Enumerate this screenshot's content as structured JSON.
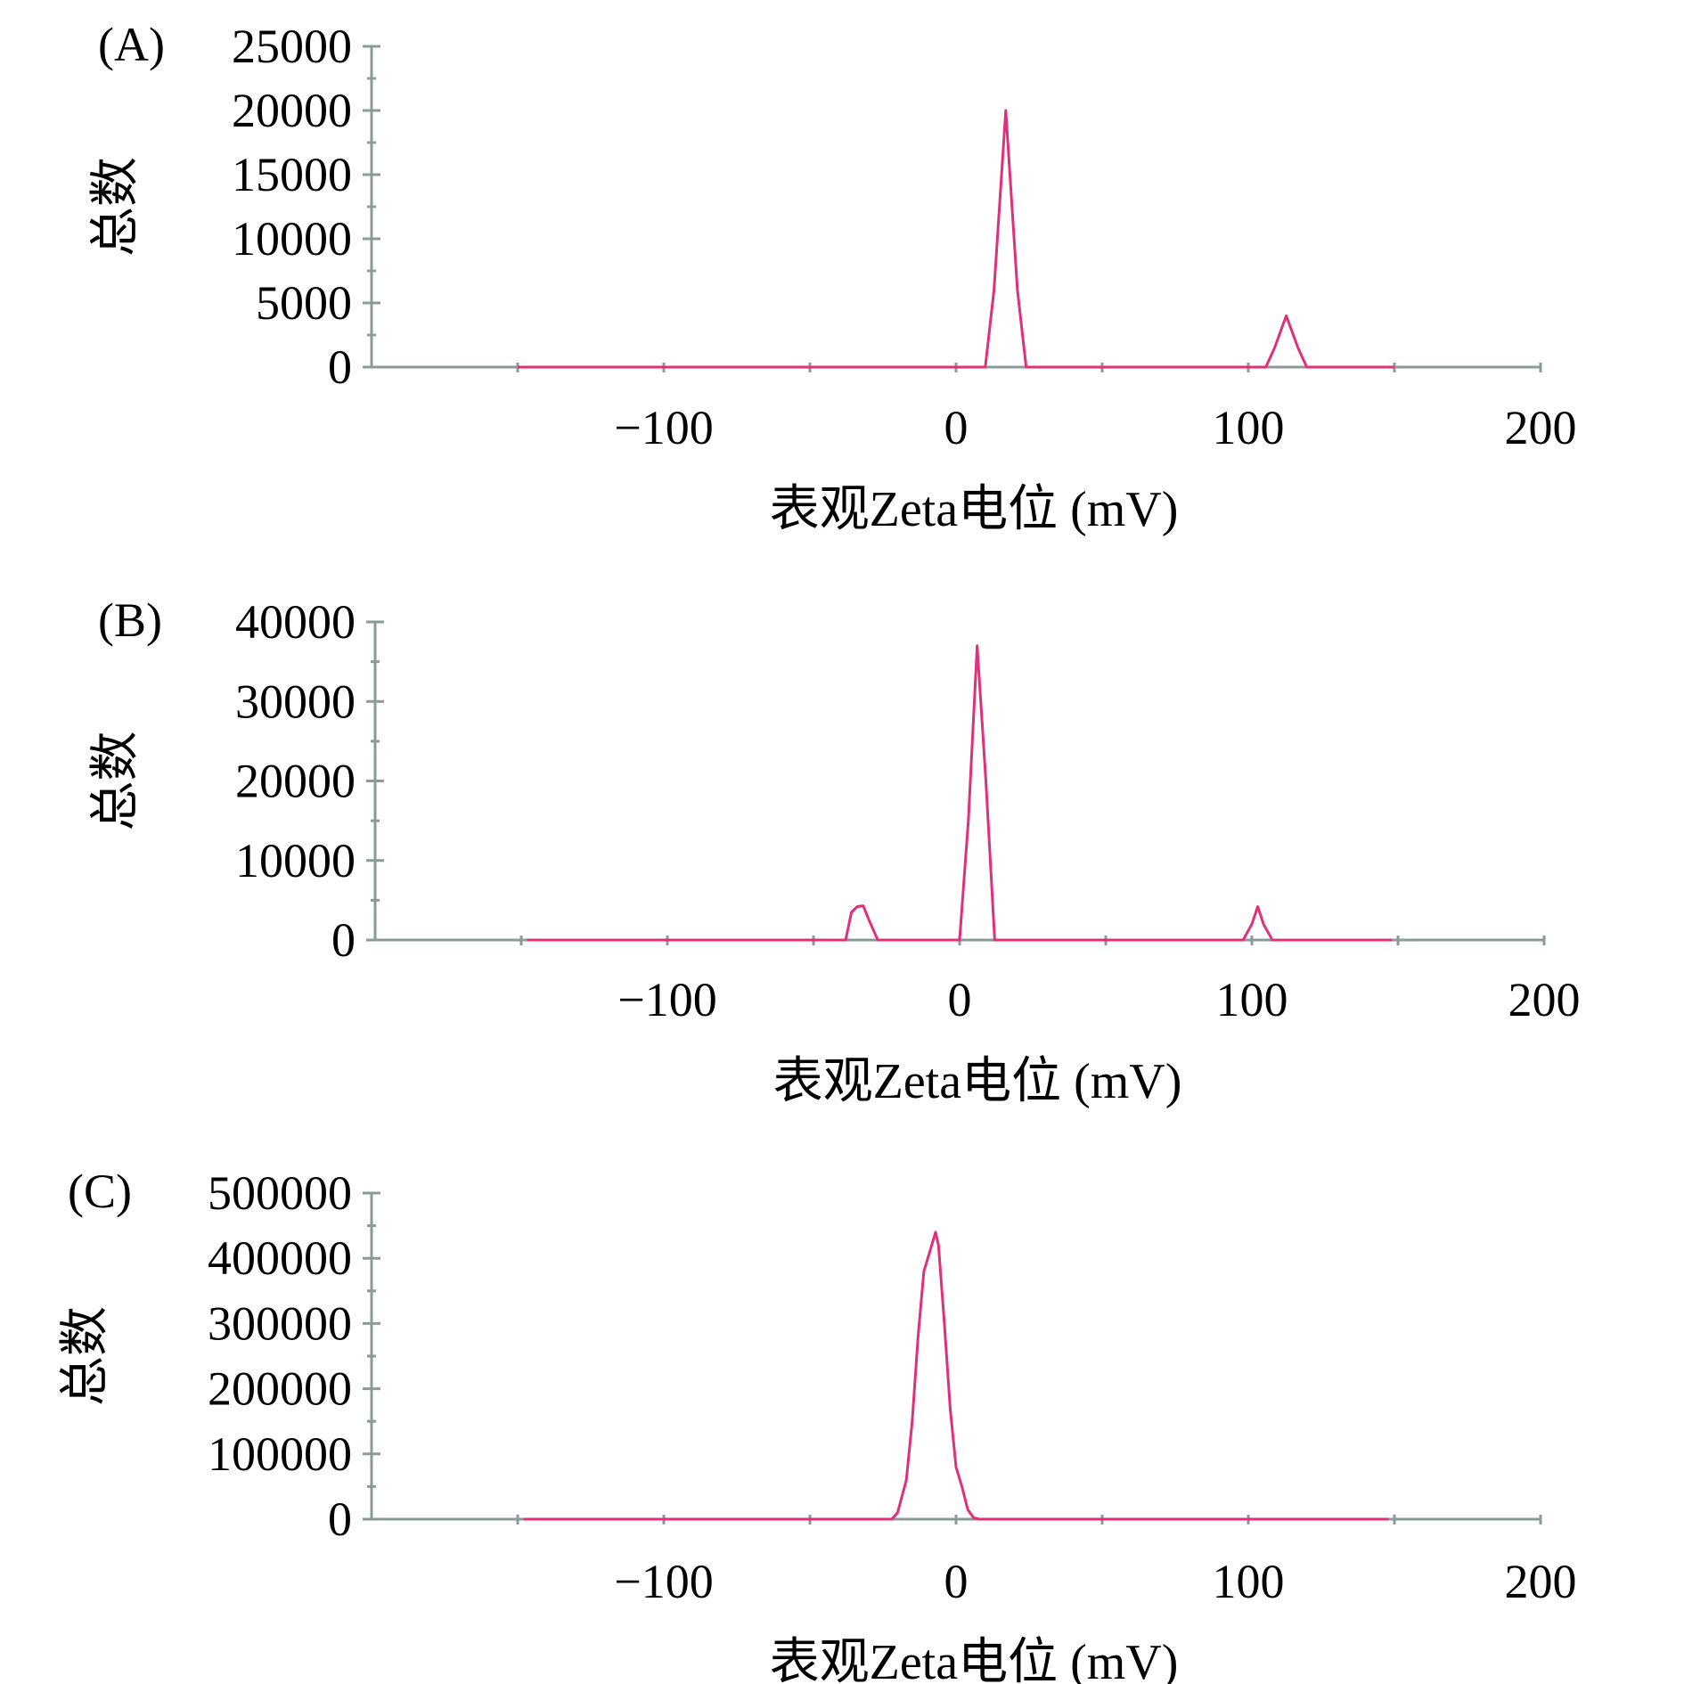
{
  "colors": {
    "series": "#e0307a",
    "axis": "#8a9a9a",
    "text": "#000000"
  },
  "chart_data": [
    {
      "type": "line",
      "panel_label": "(A)",
      "xlabel": "表观Zeta电位 (mV)",
      "ylabel": "总数",
      "xlim": [
        -200,
        200
      ],
      "ylim": [
        0,
        25000
      ],
      "x_ticks": [
        -100,
        0,
        100,
        200
      ],
      "x_tick_labels": [
        "−100",
        "0",
        "100",
        "200"
      ],
      "y_ticks": [
        0,
        5000,
        10000,
        15000,
        20000,
        25000
      ],
      "y_tick_labels": [
        "0",
        "5000",
        "10000",
        "15000",
        "20000",
        "25000"
      ],
      "x_range_drawn": [
        -150,
        150
      ],
      "series": [
        {
          "points": [
            [
              -150,
              0
            ],
            [
              10,
              0
            ],
            [
              13,
              6000
            ],
            [
              17,
              20000
            ],
            [
              21,
              6000
            ],
            [
              24,
              0
            ],
            [
              106,
              0
            ],
            [
              109,
              1500
            ],
            [
              113,
              4000
            ],
            [
              117,
              1500
            ],
            [
              120,
              0
            ],
            [
              150,
              0
            ]
          ]
        }
      ]
    },
    {
      "type": "line",
      "panel_label": "(B)",
      "xlabel": "表观Zeta电位 (mV)",
      "ylabel": "总数",
      "xlim": [
        -200,
        200
      ],
      "ylim": [
        0,
        40000
      ],
      "x_ticks": [
        -100,
        0,
        100,
        200
      ],
      "x_tick_labels": [
        "−100",
        "0",
        "100",
        "200"
      ],
      "y_ticks": [
        0,
        10000,
        20000,
        30000,
        40000
      ],
      "y_tick_labels": [
        "0",
        "10000",
        "20000",
        "30000",
        "40000"
      ],
      "x_range_drawn": [
        -148,
        148
      ],
      "series": [
        {
          "points": [
            [
              -148,
              0
            ],
            [
              -39,
              0
            ],
            [
              -37,
              3500
            ],
            [
              -35,
              4200
            ],
            [
              -33,
              4300
            ],
            [
              -31,
              2500
            ],
            [
              -28,
              0
            ],
            [
              0,
              0
            ],
            [
              3,
              15000
            ],
            [
              6,
              37000
            ],
            [
              9,
              20000
            ],
            [
              12,
              0
            ],
            [
              97,
              0
            ],
            [
              100,
              2000
            ],
            [
              102,
              4200
            ],
            [
              104,
              2000
            ],
            [
              107,
              0
            ],
            [
              148,
              0
            ]
          ]
        }
      ]
    },
    {
      "type": "line",
      "panel_label": "(C)",
      "xlabel": "表观Zeta电位 (mV)",
      "ylabel": "总数",
      "xlim": [
        -200,
        200
      ],
      "ylim": [
        0,
        500000
      ],
      "x_ticks": [
        -100,
        0,
        100,
        200
      ],
      "x_tick_labels": [
        "−100",
        "0",
        "100",
        "200"
      ],
      "y_ticks": [
        0,
        100000,
        200000,
        300000,
        400000,
        500000
      ],
      "y_tick_labels": [
        "0",
        "100000",
        "200000",
        "300000",
        "400000",
        "500000"
      ],
      "x_range_drawn": [
        -148,
        148
      ],
      "series": [
        {
          "points": [
            [
              -148,
              0
            ],
            [
              -22,
              0
            ],
            [
              -20,
              10000
            ],
            [
              -17,
              60000
            ],
            [
              -15,
              150000
            ],
            [
              -13,
              280000
            ],
            [
              -11,
              380000
            ],
            [
              -9,
              410000
            ],
            [
              -7,
              440000
            ],
            [
              -6,
              420000
            ],
            [
              -4,
              300000
            ],
            [
              -2,
              170000
            ],
            [
              0,
              80000
            ],
            [
              2,
              50000
            ],
            [
              4,
              15000
            ],
            [
              6,
              2000
            ],
            [
              8,
              0
            ],
            [
              148,
              0
            ]
          ]
        }
      ]
    }
  ]
}
